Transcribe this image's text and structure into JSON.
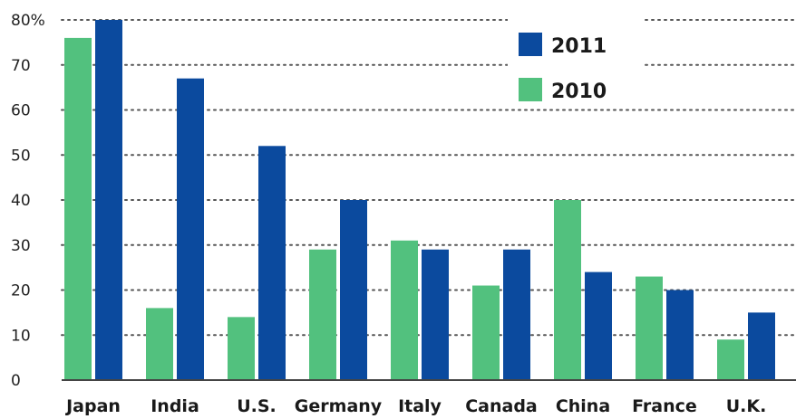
{
  "chart_data": {
    "type": "bar",
    "title": "",
    "xlabel": "",
    "ylabel": "",
    "ylim": [
      0,
      80
    ],
    "yticks": [
      "0",
      "10",
      "20",
      "30",
      "40",
      "50",
      "60",
      "70",
      "80%"
    ],
    "categories": [
      "Japan",
      "India",
      "U.S.",
      "Germany",
      "Italy",
      "Canada",
      "China",
      "France",
      "U.K."
    ],
    "series": [
      {
        "name": "2010",
        "color": "#52c17e",
        "values": [
          76,
          16,
          14,
          29,
          31,
          21,
          40,
          23,
          9
        ]
      },
      {
        "name": "2011",
        "color": "#0b4a9e",
        "values": [
          80,
          67,
          52,
          40,
          29,
          29,
          24,
          20,
          15
        ]
      }
    ],
    "legend": {
      "position": "top-right",
      "order": [
        "2011",
        "2010"
      ]
    },
    "grid": "dotted-horizontal"
  }
}
